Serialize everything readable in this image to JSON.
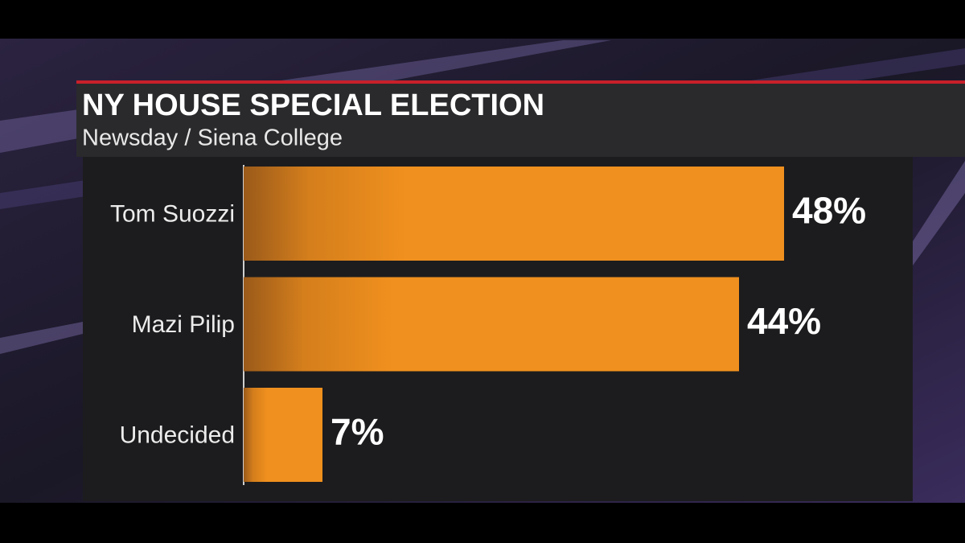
{
  "chart_data": {
    "type": "bar",
    "orientation": "horizontal",
    "title": "NY HOUSE SPECIAL ELECTION",
    "subtitle": "Newsday / Siena College",
    "categories": [
      "Tom Suozzi",
      "Mazi Pilip",
      "Undecided"
    ],
    "values": [
      48,
      44,
      7
    ],
    "value_labels": [
      "48%",
      "44%",
      "7%"
    ],
    "color": "#f0901e"
  }
}
